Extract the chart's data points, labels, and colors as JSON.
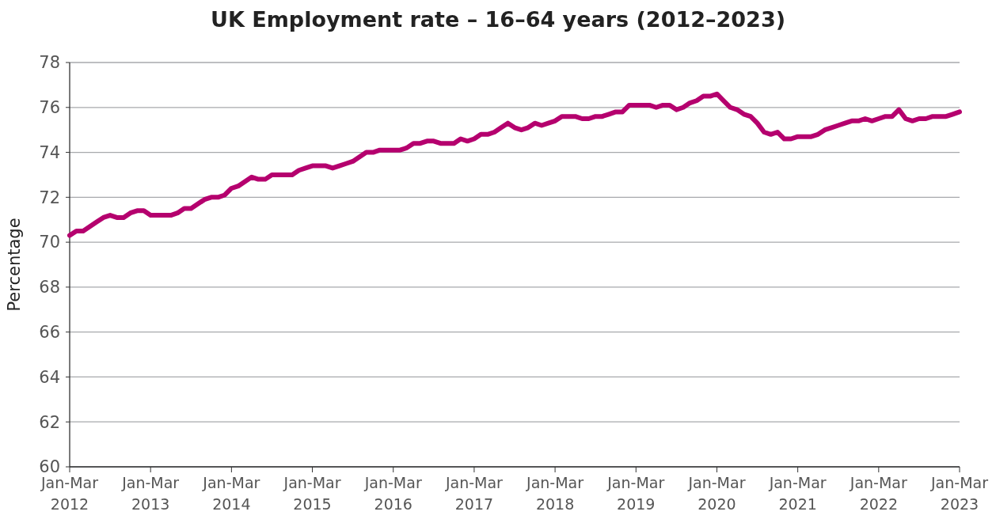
{
  "chart_data": {
    "type": "line",
    "title": "UK Employment rate – 16–64 years (2012–2023)",
    "ylabel": "Percentage",
    "categories": [
      "Jan-Mar 2012",
      null,
      null,
      null,
      null,
      null,
      null,
      null,
      null,
      null,
      null,
      null,
      "Jan-Mar 2013",
      null,
      null,
      null,
      null,
      null,
      null,
      null,
      null,
      null,
      null,
      null,
      "Jan-Mar 2014",
      null,
      null,
      null,
      null,
      null,
      null,
      null,
      null,
      null,
      null,
      null,
      "Jan-Mar 2015",
      null,
      null,
      null,
      null,
      null,
      null,
      null,
      null,
      null,
      null,
      null,
      "Jan-Mar 2016",
      null,
      null,
      null,
      null,
      null,
      null,
      null,
      null,
      null,
      null,
      null,
      "Jan-Mar 2017",
      null,
      null,
      null,
      null,
      null,
      null,
      null,
      null,
      null,
      null,
      null,
      "Jan-Mar 2018",
      null,
      null,
      null,
      null,
      null,
      null,
      null,
      null,
      null,
      null,
      null,
      "Jan-Mar 2019",
      null,
      null,
      null,
      null,
      null,
      null,
      null,
      null,
      null,
      null,
      null,
      "Jan-Mar 2020",
      null,
      null,
      null,
      null,
      null,
      null,
      null,
      null,
      null,
      null,
      null,
      "Jan-Mar 2021",
      null,
      null,
      null,
      null,
      null,
      null,
      null,
      null,
      null,
      null,
      null,
      "Jan-Mar 2022",
      null,
      null,
      null,
      null,
      null,
      null,
      null,
      null,
      null,
      null,
      null,
      "Jan-Mar 2023"
    ],
    "series": [
      {
        "color": "#b5006e",
        "values": [
          70.3,
          70.5,
          70.5,
          70.7,
          70.9,
          71.1,
          71.2,
          71.1,
          71.1,
          71.3,
          71.4,
          71.4,
          71.2,
          71.2,
          71.2,
          71.2,
          71.3,
          71.5,
          71.5,
          71.7,
          71.9,
          72.0,
          72.0,
          72.1,
          72.4,
          72.5,
          72.7,
          72.9,
          72.8,
          72.8,
          73.0,
          73.0,
          73.0,
          73.0,
          73.2,
          73.3,
          73.4,
          73.4,
          73.4,
          73.3,
          73.4,
          73.5,
          73.6,
          73.8,
          74.0,
          74.0,
          74.1,
          74.1,
          74.1,
          74.1,
          74.2,
          74.4,
          74.4,
          74.5,
          74.5,
          74.4,
          74.4,
          74.4,
          74.6,
          74.5,
          74.6,
          74.8,
          74.8,
          74.9,
          75.1,
          75.3,
          75.1,
          75.0,
          75.1,
          75.3,
          75.2,
          75.3,
          75.4,
          75.6,
          75.6,
          75.6,
          75.5,
          75.5,
          75.6,
          75.6,
          75.7,
          75.8,
          75.8,
          76.1,
          76.1,
          76.1,
          76.1,
          76.0,
          76.1,
          76.1,
          75.9,
          76.0,
          76.2,
          76.3,
          76.5,
          76.5,
          76.6,
          76.3,
          76.0,
          75.9,
          75.7,
          75.6,
          75.3,
          74.9,
          74.8,
          74.9,
          74.6,
          74.6,
          74.7,
          74.7,
          74.7,
          74.8,
          75.0,
          75.1,
          75.2,
          75.3,
          75.4,
          75.4,
          75.5,
          75.4,
          75.5,
          75.6,
          75.6,
          75.9,
          75.5,
          75.4,
          75.5,
          75.5,
          75.6,
          75.6,
          75.6,
          75.7,
          75.8
        ]
      }
    ],
    "ylim": [
      60,
      78
    ],
    "yticks": [
      60,
      62,
      64,
      66,
      68,
      70,
      72,
      74,
      76,
      78
    ],
    "grid": "y",
    "marker": "none",
    "line_style": "solid"
  }
}
